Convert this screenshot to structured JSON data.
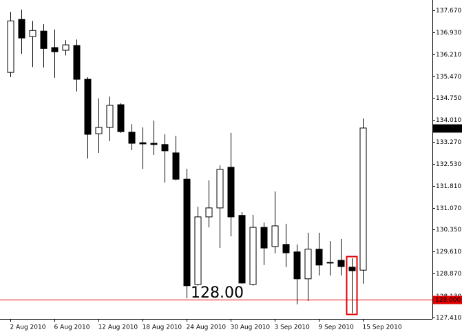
{
  "chart_data": {
    "type": "candlestick",
    "categories": [
      "2 Aug 2010",
      null,
      null,
      null,
      "6 Aug 2010",
      null,
      null,
      null,
      "12 Aug 2010",
      null,
      null,
      null,
      "18 Aug 2010",
      null,
      null,
      null,
      "24 Aug 2010",
      null,
      null,
      null,
      "30 Aug 2010",
      null,
      null,
      null,
      "3 Sep 2010",
      null,
      null,
      null,
      "9 Sep 2010",
      null,
      null,
      null,
      "15 Sep 2010"
    ],
    "open": [
      135.6,
      137.37,
      136.8,
      136.98,
      136.43,
      136.34,
      136.5,
      135.37,
      133.55,
      133.76,
      134.52,
      133.6,
      133.25,
      133.23,
      133.19,
      132.91,
      132.03,
      128.51,
      130.77,
      131.07,
      132.43,
      130.82,
      128.51,
      130.42,
      129.78,
      129.85,
      129.6,
      128.7,
      129.69,
      129.25,
      129.32,
      129.09,
      128.99
    ],
    "high": [
      137.62,
      137.7,
      137.32,
      137.21,
      137.03,
      136.68,
      136.7,
      135.44,
      134.73,
      134.79,
      134.57,
      133.87,
      133.76,
      133.99,
      133.53,
      133.48,
      132.38,
      131.11,
      131.99,
      132.49,
      133.58,
      130.93,
      130.84,
      130.58,
      131.62,
      130.54,
      129.85,
      130.24,
      130.24,
      129.96,
      130.03,
      129.39,
      134.06
    ],
    "low": [
      135.44,
      136.22,
      135.78,
      135.76,
      135.42,
      136.17,
      134.96,
      132.72,
      132.91,
      133.3,
      133.58,
      133.0,
      132.38,
      132.84,
      131.92,
      131.99,
      128.05,
      128.47,
      130.42,
      129.73,
      130.12,
      128.54,
      128.47,
      129.16,
      129.55,
      129.09,
      127.85,
      127.96,
      128.81,
      128.81,
      128.81,
      127.55,
      128.54
    ],
    "close": [
      137.32,
      136.75,
      137.0,
      136.4,
      136.29,
      136.52,
      135.37,
      133.53,
      133.76,
      134.5,
      133.62,
      133.23,
      133.21,
      133.19,
      132.98,
      132.03,
      128.47,
      130.77,
      131.07,
      132.36,
      130.77,
      128.56,
      130.42,
      129.73,
      130.47,
      129.57,
      128.7,
      129.69,
      129.16,
      129.23,
      129.11,
      128.97,
      133.74
    ],
    "ylim": [
      127.36,
      138.02
    ],
    "yticks": [
      {
        "value": 137.67,
        "label": "137.670"
      },
      {
        "value": 136.93,
        "label": "136.930"
      },
      {
        "value": 136.21,
        "label": "136.210"
      },
      {
        "value": 135.47,
        "label": "135.470"
      },
      {
        "value": 134.75,
        "label": "134.750"
      },
      {
        "value": 134.01,
        "label": "134.010"
      },
      {
        "value": 133.27,
        "label": "133.270"
      },
      {
        "value": 132.53,
        "label": "132.530"
      },
      {
        "value": 131.81,
        "label": "131.810"
      },
      {
        "value": 131.07,
        "label": "131.070"
      },
      {
        "value": 130.35,
        "label": "130.350"
      },
      {
        "value": 129.61,
        "label": "129.610"
      },
      {
        "value": 128.87,
        "label": "128.870"
      },
      {
        "value": 128.13,
        "label": "128.130"
      },
      {
        "value": 127.41,
        "label": "127.410"
      }
    ],
    "last_price": {
      "value": 133.74,
      "label": "133.740"
    },
    "hline": {
      "value": 128.0,
      "label": "128.000",
      "color": "#e00000"
    },
    "annotation": "128.00",
    "color": "#000000"
  }
}
